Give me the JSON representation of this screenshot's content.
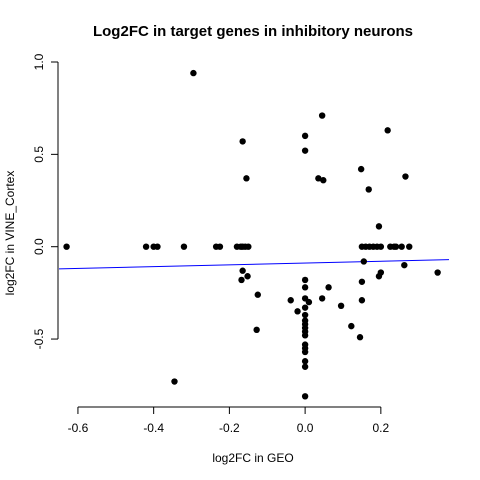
{
  "chart_data": {
    "type": "scatter",
    "title": "Log2FC in target genes in inhibitory neurons",
    "xlabel": "log2FC in GEO",
    "ylabel": "log2FC in VINE_Cortex",
    "xlim": [
      -0.65,
      0.38
    ],
    "ylim": [
      -0.83,
      1.0
    ],
    "xticks": [
      -0.6,
      -0.4,
      -0.2,
      0.0,
      0.2
    ],
    "xtick_labels": [
      "-0.6",
      "-0.4",
      "-0.2",
      "0.0",
      "0.2"
    ],
    "yticks": [
      -0.5,
      0.0,
      0.5,
      1.0
    ],
    "ytick_labels": [
      "-0.5",
      "0.0",
      "0.5",
      "1.0"
    ],
    "grid": false,
    "point_color": "#000000",
    "line_color": "#0000ff",
    "regression_line": {
      "x": [
        -0.65,
        0.38
      ],
      "y": [
        -0.12,
        -0.07
      ]
    },
    "points": [
      {
        "x": -0.63,
        "y": 0.0
      },
      {
        "x": -0.42,
        "y": 0.0
      },
      {
        "x": -0.4,
        "y": 0.0
      },
      {
        "x": -0.39,
        "y": 0.0
      },
      {
        "x": -0.32,
        "y": 0.0
      },
      {
        "x": -0.235,
        "y": 0.0
      },
      {
        "x": -0.225,
        "y": 0.0
      },
      {
        "x": -0.18,
        "y": 0.0
      },
      {
        "x": -0.17,
        "y": 0.0
      },
      {
        "x": -0.165,
        "y": 0.0
      },
      {
        "x": -0.158,
        "y": 0.0
      },
      {
        "x": -0.15,
        "y": 0.0
      },
      {
        "x": -0.295,
        "y": 0.94
      },
      {
        "x": -0.165,
        "y": 0.57
      },
      {
        "x": -0.155,
        "y": 0.37
      },
      {
        "x": -0.345,
        "y": -0.73
      },
      {
        "x": -0.165,
        "y": -0.13
      },
      {
        "x": -0.168,
        "y": -0.18
      },
      {
        "x": -0.152,
        "y": -0.16
      },
      {
        "x": -0.125,
        "y": -0.26
      },
      {
        "x": -0.128,
        "y": -0.45
      },
      {
        "x": 0.0,
        "y": 0.6
      },
      {
        "x": 0.0,
        "y": 0.52
      },
      {
        "x": 0.0,
        "y": -0.18
      },
      {
        "x": 0.0,
        "y": -0.22
      },
      {
        "x": 0.0,
        "y": -0.28
      },
      {
        "x": 0.0,
        "y": -0.33
      },
      {
        "x": 0.0,
        "y": -0.37
      },
      {
        "x": 0.0,
        "y": -0.4
      },
      {
        "x": 0.0,
        "y": -0.42
      },
      {
        "x": 0.0,
        "y": -0.44
      },
      {
        "x": 0.0,
        "y": -0.46
      },
      {
        "x": 0.0,
        "y": -0.48
      },
      {
        "x": 0.0,
        "y": -0.53
      },
      {
        "x": 0.0,
        "y": -0.55
      },
      {
        "x": 0.0,
        "y": -0.57
      },
      {
        "x": 0.0,
        "y": -0.62
      },
      {
        "x": 0.0,
        "y": -0.65
      },
      {
        "x": 0.0,
        "y": -0.81
      },
      {
        "x": -0.038,
        "y": -0.29
      },
      {
        "x": -0.02,
        "y": -0.35
      },
      {
        "x": 0.01,
        "y": -0.3
      },
      {
        "x": 0.035,
        "y": 0.37
      },
      {
        "x": 0.045,
        "y": 0.71
      },
      {
        "x": 0.048,
        "y": 0.36
      },
      {
        "x": 0.045,
        "y": -0.28
      },
      {
        "x": 0.062,
        "y": -0.22
      },
      {
        "x": 0.095,
        "y": -0.32
      },
      {
        "x": 0.122,
        "y": -0.43
      },
      {
        "x": 0.145,
        "y": -0.49
      },
      {
        "x": 0.148,
        "y": 0.42
      },
      {
        "x": 0.15,
        "y": -0.29
      },
      {
        "x": 0.15,
        "y": -0.19
      },
      {
        "x": 0.155,
        "y": -0.08
      },
      {
        "x": 0.168,
        "y": 0.31
      },
      {
        "x": 0.195,
        "y": 0.11
      },
      {
        "x": 0.195,
        "y": -0.16
      },
      {
        "x": 0.2,
        "y": -0.14
      },
      {
        "x": 0.218,
        "y": 0.63
      },
      {
        "x": 0.265,
        "y": 0.38
      },
      {
        "x": 0.262,
        "y": -0.1
      },
      {
        "x": 0.35,
        "y": -0.14
      },
      {
        "x": 0.15,
        "y": 0.0
      },
      {
        "x": 0.16,
        "y": 0.0
      },
      {
        "x": 0.17,
        "y": 0.0
      },
      {
        "x": 0.18,
        "y": 0.0
      },
      {
        "x": 0.19,
        "y": 0.0
      },
      {
        "x": 0.2,
        "y": 0.0
      },
      {
        "x": 0.225,
        "y": 0.0
      },
      {
        "x": 0.235,
        "y": 0.0
      },
      {
        "x": 0.24,
        "y": 0.0
      },
      {
        "x": 0.255,
        "y": 0.0
      },
      {
        "x": 0.275,
        "y": 0.0
      }
    ]
  }
}
